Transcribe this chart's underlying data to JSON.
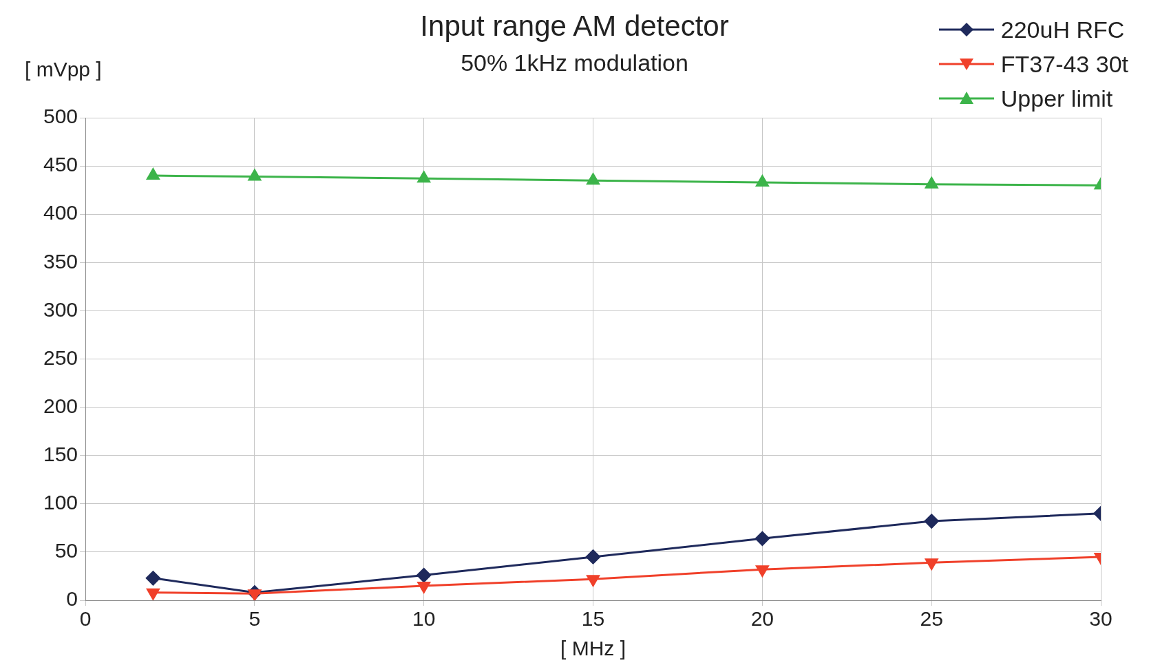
{
  "chart_data": {
    "type": "line",
    "title": "Input range AM detector",
    "subtitle": "50% 1kHz modulation",
    "xlabel": "[ MHz ]",
    "ylabel": "[ mVpp ]",
    "x": [
      2,
      5,
      10,
      15,
      20,
      25,
      30
    ],
    "series": [
      {
        "name": "220uH RFC",
        "color": "#1f2a5c",
        "marker": "diamond",
        "values": [
          23,
          8,
          26,
          45,
          64,
          82,
          90
        ]
      },
      {
        "name": "FT37-43 30t",
        "color": "#f0402a",
        "marker": "triangle",
        "values": [
          8,
          7,
          15,
          22,
          32,
          39,
          45
        ]
      },
      {
        "name": "Upper limit",
        "color": "#3cb44a",
        "marker": "triangle",
        "values": [
          440,
          439,
          437,
          435,
          433,
          431,
          430
        ]
      }
    ],
    "xlim": [
      0,
      30
    ],
    "xticks": [
      0,
      5,
      10,
      15,
      20,
      25,
      30
    ],
    "ylim": [
      0,
      500
    ],
    "yticks": [
      0,
      50,
      100,
      150,
      200,
      250,
      300,
      350,
      400,
      450,
      500
    ],
    "grid": true,
    "legend": "top right",
    "line_style": "solid"
  }
}
